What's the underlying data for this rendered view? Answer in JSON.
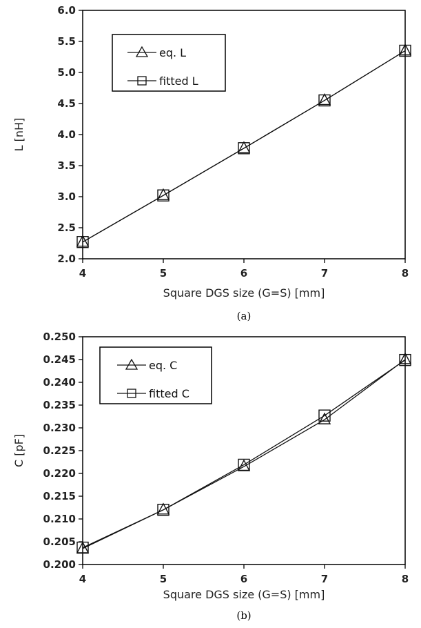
{
  "chart_data": [
    {
      "type": "line",
      "caption": "(a)",
      "xlabel": "Square DGS size (G=S) [mm]",
      "ylabel": "L [nH]",
      "xlim": [
        4,
        8
      ],
      "ylim": [
        2.0,
        6.0
      ],
      "xticks": [
        "4",
        "5",
        "6",
        "7",
        "8"
      ],
      "yticks": [
        "2.0",
        "2.5",
        "3.0",
        "3.5",
        "4.0",
        "4.5",
        "5.0",
        "5.5",
        "6.0"
      ],
      "legend_position": "top-left",
      "x": [
        4,
        5,
        6,
        7,
        8
      ],
      "series": [
        {
          "name": "eq. L",
          "marker": "triangle",
          "values": [
            2.27,
            3.02,
            3.78,
            4.55,
            5.35
          ]
        },
        {
          "name": "fitted L",
          "marker": "square",
          "values": [
            2.27,
            3.02,
            3.78,
            4.55,
            5.35
          ]
        }
      ]
    },
    {
      "type": "line",
      "caption": "(b)",
      "xlabel": "Square DGS size (G=S) [mm]",
      "ylabel": "C [pF]",
      "xlim": [
        4,
        8
      ],
      "ylim": [
        0.2,
        0.25
      ],
      "xticks": [
        "4",
        "5",
        "6",
        "7",
        "8"
      ],
      "yticks": [
        "0.200",
        "0.205",
        "0.210",
        "0.215",
        "0.220",
        "0.225",
        "0.230",
        "0.235",
        "0.240",
        "0.245",
        "0.250"
      ],
      "legend_position": "top-left",
      "x": [
        4,
        5,
        6,
        7,
        8
      ],
      "series": [
        {
          "name": "eq. C",
          "marker": "triangle",
          "values": [
            0.2035,
            0.212,
            0.2215,
            0.2318,
            0.245
          ]
        },
        {
          "name": "fitted C",
          "marker": "square",
          "values": [
            0.2037,
            0.212,
            0.2219,
            0.2327,
            0.2449
          ]
        }
      ]
    }
  ],
  "colors": {
    "line": "#111111",
    "axis": "#000000",
    "background": "#ffffff"
  }
}
